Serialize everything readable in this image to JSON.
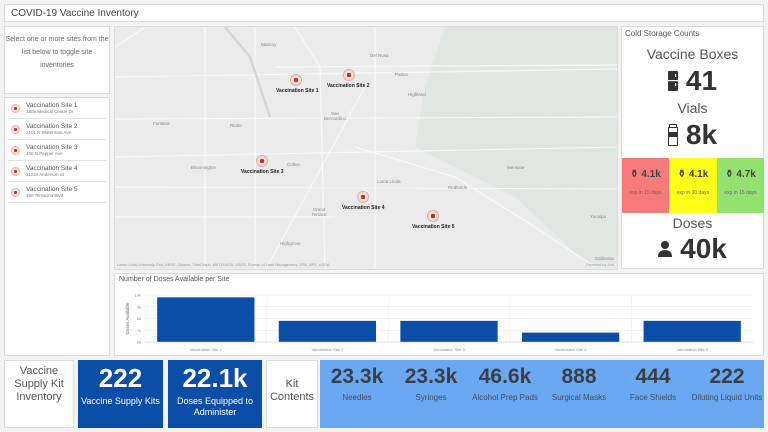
{
  "app": {
    "title": "COVID-19 Vaccine Inventory"
  },
  "instructions": "Select one or more sites from the list below to toggle site inventories",
  "sites": [
    {
      "name": "Vaccination Site 1",
      "address": "1805 Medical Center Dr"
    },
    {
      "name": "Vaccination Site 2",
      "address": "2101 N Waterman Ave"
    },
    {
      "name": "Vaccination Site 3",
      "address": "400 N Pepper Ave"
    },
    {
      "name": "Vaccination Site 4",
      "address": "11234 Anderson St"
    },
    {
      "name": "Vaccination Site 5",
      "address": "350 Terracina Blvd"
    }
  ],
  "map": {
    "places": [
      "Muscoy",
      "Del Rosa",
      "Patton",
      "Highland",
      "San Bernardino",
      "Fontana",
      "Rialto",
      "Bloomington",
      "Colton",
      "Loma Linda",
      "Grand Terrace",
      "Redlands",
      "Mentone",
      "Yucaipa",
      "Highgrove",
      "Calimesa"
    ],
    "attribution": "Loma Linda University, Esri, HERE, Garmin, SafeGraph, METI/NASA, USGS, Bureau of Land Management, EPA, NPS, USDA",
    "powered_by": "Powered by Esri"
  },
  "cold_storage": {
    "title": "Cold Storage Counts",
    "boxes_label": "Vaccine Boxes",
    "boxes_value": "41",
    "vials_label": "Vials",
    "vials_value": "8k",
    "expiry": [
      {
        "value": "4.1k",
        "label": "exp in 15 days",
        "color": "#f77b7b"
      },
      {
        "value": "4.1k",
        "label": "exp in 30 days",
        "color": "#ffff1a"
      },
      {
        "value": "4.7k",
        "label": "exp in 15 days",
        "color": "#93e270"
      }
    ],
    "doses_label": "Doses",
    "doses_value": "40k"
  },
  "chart_data": {
    "type": "bar",
    "title": "Number of Doses Available per Site",
    "xlabel": "",
    "ylabel": "Doses Available",
    "categories": [
      "Vaccination Site 1",
      "Vaccination Site 2",
      "Vaccination Site 3",
      "Vaccination Site 4",
      "Vaccination Site 5"
    ],
    "values": [
      9800,
      7800,
      7800,
      6800,
      7800
    ],
    "ylim": [
      6000,
      10000
    ],
    "yticks": [
      "10k",
      "9k",
      "8k",
      "7k",
      "6k"
    ],
    "color": "#0b4ea7",
    "grid": true
  },
  "kit_inventory": {
    "title": "Vaccine Supply Kit Inventory",
    "kits_value": "222",
    "kits_label": "Vaccine Supply Kits",
    "doses_value": "22.1k",
    "doses_label": "Doses Equipped to Administer",
    "contents_title": "Kit Contents",
    "contents": [
      {
        "value": "23.3k",
        "label": "Needles"
      },
      {
        "value": "23.3k",
        "label": "Syringes"
      },
      {
        "value": "46.6k",
        "label": "Alcohol Prep Pads"
      },
      {
        "value": "888",
        "label": "Surgical Masks"
      },
      {
        "value": "444",
        "label": "Face Shields"
      },
      {
        "value": "222",
        "label": "Diluting Liquid Units"
      }
    ]
  }
}
